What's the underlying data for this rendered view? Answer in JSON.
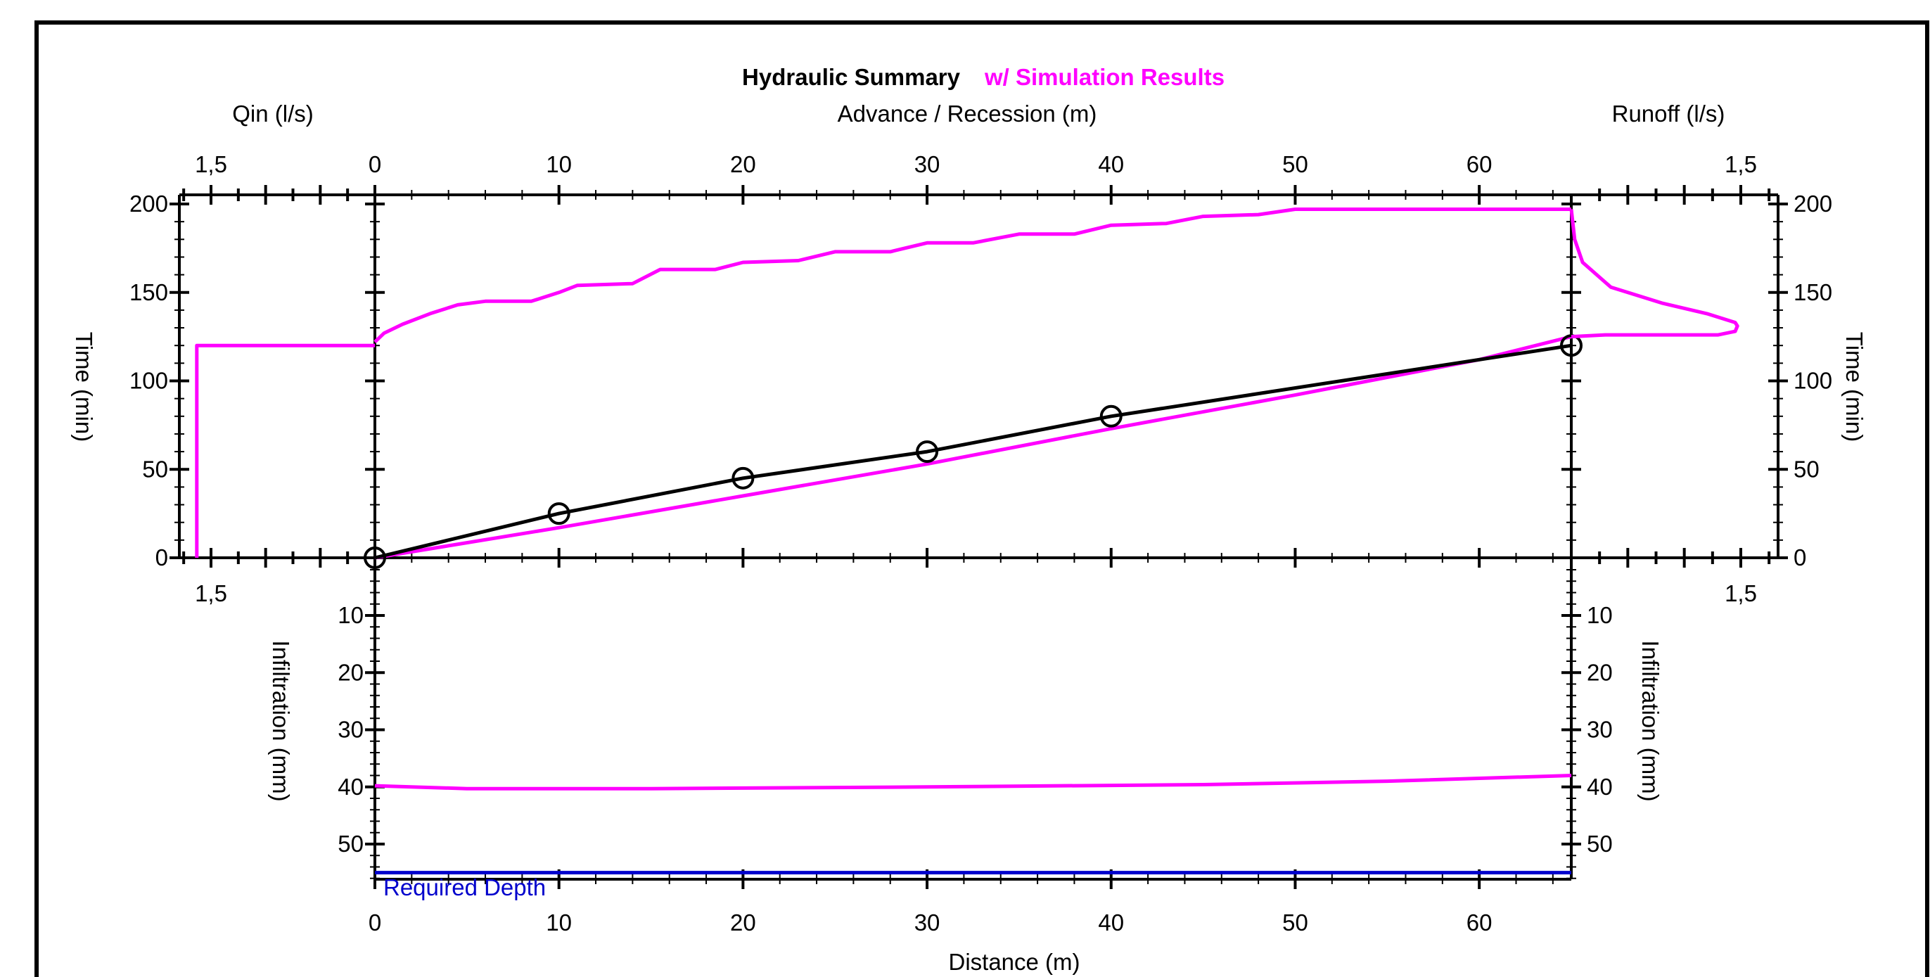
{
  "chart_data": {
    "type": "line",
    "title": "Hydraulic Summary",
    "subtitle": "w/ Simulation Results",
    "colors": {
      "observed": "#000000",
      "simulated": "#ff00ff",
      "required": "#0000cc"
    },
    "panels": {
      "qin": {
        "xlabel": "Qin (l/s)",
        "ylabel": "Time (min)",
        "x_ticks": [
          "1,5",
          "0"
        ],
        "xlim": [
          2.0,
          0
        ],
        "ylim": [
          0,
          200
        ],
        "series": [
          {
            "values": [
              [
                1.63,
                0
              ],
              [
                1.63,
                120
              ],
              [
                0,
                120
              ]
            ]
          }
        ]
      },
      "advance_recession": {
        "xlabel": "Advance / Recession (m)",
        "ylabel": "Time (min)",
        "x_ticks": [
          "0",
          "10",
          "20",
          "30",
          "40",
          "50",
          "60"
        ],
        "xlim": [
          0,
          65
        ],
        "ylim": [
          0,
          200
        ],
        "y_ticks": [
          "0",
          "50",
          "100",
          "150",
          "200"
        ],
        "series": [
          {
            "key": "advance_observed",
            "marker": "circle",
            "values": [
              [
                0,
                0
              ],
              [
                10,
                25
              ],
              [
                20,
                45
              ],
              [
                30,
                60
              ],
              [
                40,
                80
              ],
              [
                65,
                120
              ]
            ]
          },
          {
            "key": "advance_simulated",
            "values": [
              [
                0,
                0
              ],
              [
                10,
                17
              ],
              [
                20,
                35
              ],
              [
                30,
                53
              ],
              [
                40,
                73
              ],
              [
                50,
                92
              ],
              [
                60,
                112
              ],
              [
                65,
                125
              ]
            ]
          },
          {
            "key": "recession_simulated",
            "values": [
              [
                0,
                122
              ],
              [
                0.5,
                127
              ],
              [
                1.5,
                132
              ],
              [
                3,
                138
              ],
              [
                4.5,
                143
              ],
              [
                6,
                145
              ],
              [
                8.5,
                145
              ],
              [
                10,
                150
              ],
              [
                11,
                154
              ],
              [
                14,
                155
              ],
              [
                15.5,
                163
              ],
              [
                18.5,
                163
              ],
              [
                20,
                167
              ],
              [
                23,
                168
              ],
              [
                25,
                173
              ],
              [
                28,
                173
              ],
              [
                30,
                178
              ],
              [
                32.5,
                178
              ],
              [
                35,
                183
              ],
              [
                38,
                183
              ],
              [
                40,
                188
              ],
              [
                43,
                189
              ],
              [
                45,
                193
              ],
              [
                48,
                194
              ],
              [
                50,
                197
              ],
              [
                65,
                197
              ]
            ]
          }
        ]
      },
      "runoff": {
        "xlabel": "Runoff (l/s)",
        "ylabel": "Time (min)",
        "x_ticks": [
          "1,5"
        ],
        "xlim": [
          0,
          1.9
        ],
        "ylim": [
          0,
          200
        ],
        "series": [
          {
            "values": [
              [
                0,
                197
              ],
              [
                0.03,
                180
              ],
              [
                0.1,
                167
              ],
              [
                0.35,
                153
              ],
              [
                0.8,
                144
              ],
              [
                1.2,
                138
              ],
              [
                1.45,
                133
              ],
              [
                1.47,
                131
              ],
              [
                1.45,
                128
              ],
              [
                1.3,
                126
              ],
              [
                0.9,
                126
              ],
              [
                0.3,
                126
              ],
              [
                0,
                125
              ]
            ]
          }
        ]
      },
      "infiltration": {
        "xlabel": "Distance (m)",
        "ylabel": "Infiltration (mm)",
        "x_ticks": [
          "0",
          "10",
          "20",
          "30",
          "40",
          "50",
          "60"
        ],
        "xlim": [
          0,
          65
        ],
        "ylim": [
          0,
          57
        ],
        "y_ticks": [
          "10",
          "20",
          "30",
          "40",
          "50"
        ],
        "required_depth": {
          "label": "Required Depth",
          "value": 55
        },
        "series": [
          {
            "key": "infiltration_simulated",
            "values": [
              [
                0,
                39.8
              ],
              [
                5,
                40.3
              ],
              [
                15,
                40.3
              ],
              [
                30,
                40
              ],
              [
                45,
                39.6
              ],
              [
                55,
                39
              ],
              [
                65,
                38
              ]
            ]
          }
        ]
      }
    }
  }
}
